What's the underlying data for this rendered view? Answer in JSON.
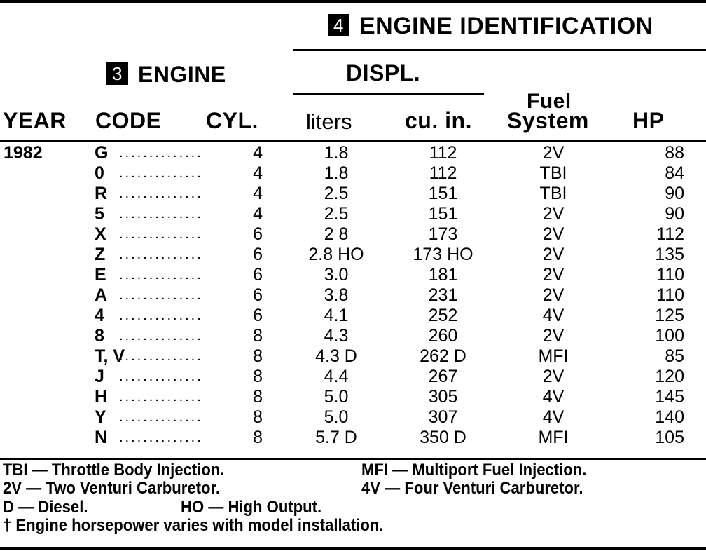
{
  "header": {
    "engine_id_number": "4",
    "engine_id_title": "ENGINE IDENTIFICATION",
    "engine_number": "3",
    "engine_title": "ENGINE",
    "displ_title": "DISPL.",
    "columns": {
      "year": "YEAR",
      "code": "CODE",
      "cyl": "CYL.",
      "liters": "liters",
      "cu_in": "cu. in.",
      "fuel_line1": "Fuel",
      "fuel_line2": "System",
      "hp": "HP"
    }
  },
  "rows": [
    {
      "year": "1982",
      "code": "G",
      "cyl": "4",
      "liters": "1.8",
      "cu_in": "112",
      "fuel": "2V",
      "hp": "88"
    },
    {
      "year": "",
      "code": "0",
      "cyl": "4",
      "liters": "1.8",
      "cu_in": "112",
      "fuel": "TBI",
      "hp": "84"
    },
    {
      "year": "",
      "code": "R",
      "cyl": "4",
      "liters": "2.5",
      "cu_in": "151",
      "fuel": "TBI",
      "hp": "90"
    },
    {
      "year": "",
      "code": "5",
      "cyl": "4",
      "liters": "2.5",
      "cu_in": "151",
      "fuel": "2V",
      "hp": "90"
    },
    {
      "year": "",
      "code": "X",
      "cyl": "6",
      "liters": "2 8",
      "cu_in": "173",
      "fuel": "2V",
      "hp": "112"
    },
    {
      "year": "",
      "code": "Z",
      "cyl": "6",
      "liters": "2.8 HO",
      "cu_in": "173 HO",
      "fuel": "2V",
      "hp": "135"
    },
    {
      "year": "",
      "code": "E",
      "cyl": "6",
      "liters": "3.0",
      "cu_in": "181",
      "fuel": "2V",
      "hp": "110"
    },
    {
      "year": "",
      "code": "A",
      "cyl": "6",
      "liters": "3.8",
      "cu_in": "231",
      "fuel": "2V",
      "hp": "110"
    },
    {
      "year": "",
      "code": "4",
      "cyl": "6",
      "liters": "4.1",
      "cu_in": "252",
      "fuel": "4V",
      "hp": "125"
    },
    {
      "year": "",
      "code": "8",
      "cyl": "8",
      "liters": "4.3",
      "cu_in": "260",
      "fuel": "2V",
      "hp": "100"
    },
    {
      "year": "",
      "code": "T, V",
      "cyl": "8",
      "liters": "4.3 D",
      "cu_in": "262 D",
      "fuel": "MFI",
      "hp": "85"
    },
    {
      "year": "",
      "code": "J",
      "cyl": "8",
      "liters": "4.4",
      "cu_in": "267",
      "fuel": "2V",
      "hp": "120"
    },
    {
      "year": "",
      "code": "H",
      "cyl": "8",
      "liters": "5.0",
      "cu_in": "305",
      "fuel": "4V",
      "hp": "145"
    },
    {
      "year": "",
      "code": "Y",
      "cyl": "8",
      "liters": "5.0",
      "cu_in": "307",
      "fuel": "4V",
      "hp": "140"
    },
    {
      "year": "",
      "code": "N",
      "cyl": "8",
      "liters": "5.7 D",
      "cu_in": "350 D",
      "fuel": "MFI",
      "hp": "105"
    }
  ],
  "dot_leader": "..............",
  "footnotes": {
    "tbi": "TBI — Throttle Body Injection.",
    "mfi": "MFI — Multiport Fuel Injection.",
    "two_v": "2V — Two Venturi Carburetor.",
    "four_v": "4V — Four Venturi Carburetor.",
    "diesel": "D — Diesel.",
    "ho": "HO — High Output.",
    "dagger": "† Engine horsepower varies with model installation."
  }
}
